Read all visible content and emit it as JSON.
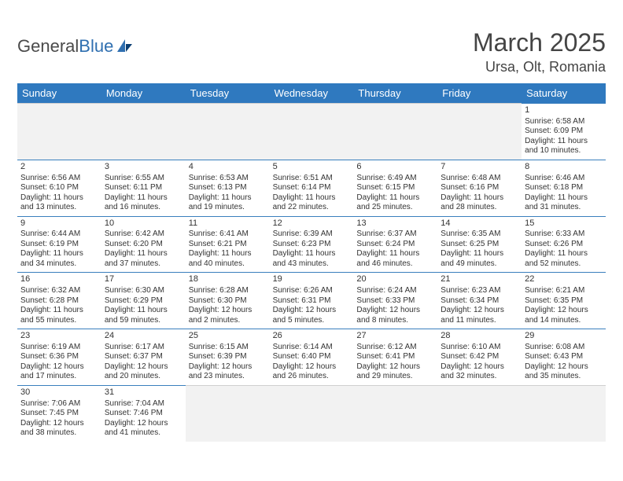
{
  "brand": {
    "part1": "General",
    "part2": "Blue"
  },
  "title": "March 2025",
  "location": "Ursa, Olt, Romania",
  "colors": {
    "header_bg": "#2f79bf",
    "header_text": "#ffffff",
    "cell_border": "#3a7fbd",
    "blank_bg": "#f2f2f2",
    "text": "#333333",
    "brand_grey": "#4a4a4a",
    "brand_blue": "#2f6fb0"
  },
  "weekdays": [
    "Sunday",
    "Monday",
    "Tuesday",
    "Wednesday",
    "Thursday",
    "Friday",
    "Saturday"
  ],
  "weeks": [
    [
      {
        "blank": true
      },
      {
        "blank": true
      },
      {
        "blank": true
      },
      {
        "blank": true
      },
      {
        "blank": true
      },
      {
        "blank": true
      },
      {
        "day": "1",
        "sunrise": "Sunrise: 6:58 AM",
        "sunset": "Sunset: 6:09 PM",
        "daylight": "Daylight: 11 hours and 10 minutes."
      }
    ],
    [
      {
        "day": "2",
        "sunrise": "Sunrise: 6:56 AM",
        "sunset": "Sunset: 6:10 PM",
        "daylight": "Daylight: 11 hours and 13 minutes."
      },
      {
        "day": "3",
        "sunrise": "Sunrise: 6:55 AM",
        "sunset": "Sunset: 6:11 PM",
        "daylight": "Daylight: 11 hours and 16 minutes."
      },
      {
        "day": "4",
        "sunrise": "Sunrise: 6:53 AM",
        "sunset": "Sunset: 6:13 PM",
        "daylight": "Daylight: 11 hours and 19 minutes."
      },
      {
        "day": "5",
        "sunrise": "Sunrise: 6:51 AM",
        "sunset": "Sunset: 6:14 PM",
        "daylight": "Daylight: 11 hours and 22 minutes."
      },
      {
        "day": "6",
        "sunrise": "Sunrise: 6:49 AM",
        "sunset": "Sunset: 6:15 PM",
        "daylight": "Daylight: 11 hours and 25 minutes."
      },
      {
        "day": "7",
        "sunrise": "Sunrise: 6:48 AM",
        "sunset": "Sunset: 6:16 PM",
        "daylight": "Daylight: 11 hours and 28 minutes."
      },
      {
        "day": "8",
        "sunrise": "Sunrise: 6:46 AM",
        "sunset": "Sunset: 6:18 PM",
        "daylight": "Daylight: 11 hours and 31 minutes."
      }
    ],
    [
      {
        "day": "9",
        "sunrise": "Sunrise: 6:44 AM",
        "sunset": "Sunset: 6:19 PM",
        "daylight": "Daylight: 11 hours and 34 minutes."
      },
      {
        "day": "10",
        "sunrise": "Sunrise: 6:42 AM",
        "sunset": "Sunset: 6:20 PM",
        "daylight": "Daylight: 11 hours and 37 minutes."
      },
      {
        "day": "11",
        "sunrise": "Sunrise: 6:41 AM",
        "sunset": "Sunset: 6:21 PM",
        "daylight": "Daylight: 11 hours and 40 minutes."
      },
      {
        "day": "12",
        "sunrise": "Sunrise: 6:39 AM",
        "sunset": "Sunset: 6:23 PM",
        "daylight": "Daylight: 11 hours and 43 minutes."
      },
      {
        "day": "13",
        "sunrise": "Sunrise: 6:37 AM",
        "sunset": "Sunset: 6:24 PM",
        "daylight": "Daylight: 11 hours and 46 minutes."
      },
      {
        "day": "14",
        "sunrise": "Sunrise: 6:35 AM",
        "sunset": "Sunset: 6:25 PM",
        "daylight": "Daylight: 11 hours and 49 minutes."
      },
      {
        "day": "15",
        "sunrise": "Sunrise: 6:33 AM",
        "sunset": "Sunset: 6:26 PM",
        "daylight": "Daylight: 11 hours and 52 minutes."
      }
    ],
    [
      {
        "day": "16",
        "sunrise": "Sunrise: 6:32 AM",
        "sunset": "Sunset: 6:28 PM",
        "daylight": "Daylight: 11 hours and 55 minutes."
      },
      {
        "day": "17",
        "sunrise": "Sunrise: 6:30 AM",
        "sunset": "Sunset: 6:29 PM",
        "daylight": "Daylight: 11 hours and 59 minutes."
      },
      {
        "day": "18",
        "sunrise": "Sunrise: 6:28 AM",
        "sunset": "Sunset: 6:30 PM",
        "daylight": "Daylight: 12 hours and 2 minutes."
      },
      {
        "day": "19",
        "sunrise": "Sunrise: 6:26 AM",
        "sunset": "Sunset: 6:31 PM",
        "daylight": "Daylight: 12 hours and 5 minutes."
      },
      {
        "day": "20",
        "sunrise": "Sunrise: 6:24 AM",
        "sunset": "Sunset: 6:33 PM",
        "daylight": "Daylight: 12 hours and 8 minutes."
      },
      {
        "day": "21",
        "sunrise": "Sunrise: 6:23 AM",
        "sunset": "Sunset: 6:34 PM",
        "daylight": "Daylight: 12 hours and 11 minutes."
      },
      {
        "day": "22",
        "sunrise": "Sunrise: 6:21 AM",
        "sunset": "Sunset: 6:35 PM",
        "daylight": "Daylight: 12 hours and 14 minutes."
      }
    ],
    [
      {
        "day": "23",
        "sunrise": "Sunrise: 6:19 AM",
        "sunset": "Sunset: 6:36 PM",
        "daylight": "Daylight: 12 hours and 17 minutes."
      },
      {
        "day": "24",
        "sunrise": "Sunrise: 6:17 AM",
        "sunset": "Sunset: 6:37 PM",
        "daylight": "Daylight: 12 hours and 20 minutes."
      },
      {
        "day": "25",
        "sunrise": "Sunrise: 6:15 AM",
        "sunset": "Sunset: 6:39 PM",
        "daylight": "Daylight: 12 hours and 23 minutes."
      },
      {
        "day": "26",
        "sunrise": "Sunrise: 6:14 AM",
        "sunset": "Sunset: 6:40 PM",
        "daylight": "Daylight: 12 hours and 26 minutes."
      },
      {
        "day": "27",
        "sunrise": "Sunrise: 6:12 AM",
        "sunset": "Sunset: 6:41 PM",
        "daylight": "Daylight: 12 hours and 29 minutes."
      },
      {
        "day": "28",
        "sunrise": "Sunrise: 6:10 AM",
        "sunset": "Sunset: 6:42 PM",
        "daylight": "Daylight: 12 hours and 32 minutes."
      },
      {
        "day": "29",
        "sunrise": "Sunrise: 6:08 AM",
        "sunset": "Sunset: 6:43 PM",
        "daylight": "Daylight: 12 hours and 35 minutes."
      }
    ],
    [
      {
        "day": "30",
        "sunrise": "Sunrise: 7:06 AM",
        "sunset": "Sunset: 7:45 PM",
        "daylight": "Daylight: 12 hours and 38 minutes."
      },
      {
        "day": "31",
        "sunrise": "Sunrise: 7:04 AM",
        "sunset": "Sunset: 7:46 PM",
        "daylight": "Daylight: 12 hours and 41 minutes."
      },
      {
        "blank": true
      },
      {
        "blank": true
      },
      {
        "blank": true
      },
      {
        "blank": true
      },
      {
        "blank": true
      }
    ]
  ]
}
